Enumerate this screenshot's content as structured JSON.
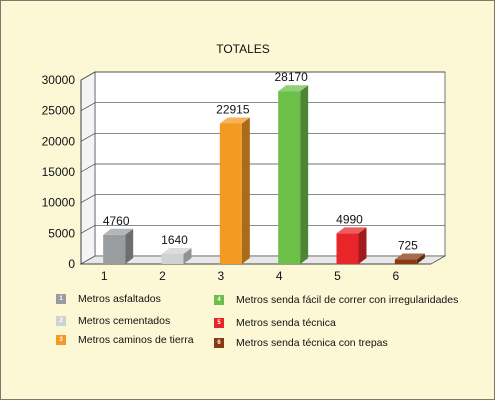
{
  "chart_data": {
    "type": "bar",
    "title": "TOTALES",
    "categories": [
      "1",
      "2",
      "3",
      "4",
      "5",
      "6"
    ],
    "values": [
      4760,
      1640,
      22915,
      28170,
      4990,
      725
    ],
    "data_labels": [
      "4760",
      "1640",
      "22915",
      "28170",
      "4990",
      "725"
    ],
    "colors": [
      "#9a9da0",
      "#cfd1d3",
      "#f39a24",
      "#6cc04a",
      "#e8262a",
      "#8a3a13"
    ],
    "ylim": [
      0,
      30000
    ],
    "yticks": [
      0,
      5000,
      10000,
      15000,
      20000,
      25000,
      30000
    ],
    "ytick_labels": [
      "0",
      "5000",
      "10000",
      "15000",
      "20000",
      "25000",
      "30000"
    ],
    "xlabel": "",
    "ylabel": "",
    "grid": true,
    "style": "3d-bars",
    "legend_position": "bottom"
  },
  "legend": [
    {
      "index": "1",
      "label": "Metros asfaltados",
      "color": "#9a9da0"
    },
    {
      "index": "2",
      "label": "Metros cementados",
      "color": "#cfd1d3"
    },
    {
      "index": "3",
      "label": "Metros caminos de tierra",
      "color": "#f39a24"
    },
    {
      "index": "4",
      "label": "Metros senda fácil de correr con irregularidades",
      "color": "#6cc04a"
    },
    {
      "index": "5",
      "label": "Metros senda técnica",
      "color": "#e8262a"
    },
    {
      "index": "6",
      "label": "Metros senda técnica con trepas",
      "color": "#8a3a13"
    }
  ]
}
